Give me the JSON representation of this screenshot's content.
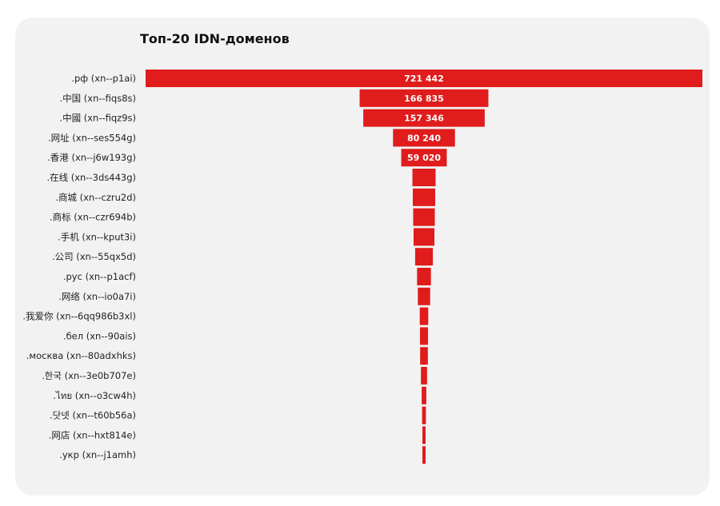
{
  "chart_data": {
    "type": "bar",
    "orientation": "horizontal",
    "layout": "centered-funnel",
    "title": "Топ-20 IDN-доменов",
    "bar_color": "#e01c1c",
    "label_color": "#ffffff",
    "categories": [
      ".рф (xn--p1ai)",
      ".中国 (xn--fiqs8s)",
      ".中國 (xn--fiqz9s)",
      ".网址 (xn--ses554g)",
      ".香港 (xn--j6w193g)",
      ".在线 (xn--3ds443g)",
      ".商城 (xn--czru2d)",
      ".商标 (xn--czr694b)",
      ".手机 (xn--kput3i)",
      ".公司 (xn--55qx5d)",
      ".рус (xn--p1acf)",
      ".网络 (xn--io0a7i)",
      ".我爱你 (xn--6qq986b3xl)",
      ".бел (xn--90ais)",
      ".москва (xn--80adxhks)",
      ".한국 (xn--3e0b707e)",
      ".ไทย (xn--o3cw4h)",
      ".닷넷 (xn--t60b56a)",
      ".网店 (xn--hxt814e)",
      ".укр (xn--j1amh)"
    ],
    "values": [
      721442,
      166835,
      157346,
      80240,
      59020,
      30000,
      29000,
      28000,
      27000,
      23000,
      18000,
      16000,
      11000,
      10500,
      10000,
      8000,
      6000,
      5000,
      4000,
      3000
    ],
    "value_labels": [
      "721 442",
      "166 835",
      "157 346",
      "80 240",
      "59 020",
      "",
      "",
      "",
      "",
      "",
      "",
      "",
      "",
      "",
      "",
      "",
      "",
      "",
      "",
      ""
    ]
  }
}
